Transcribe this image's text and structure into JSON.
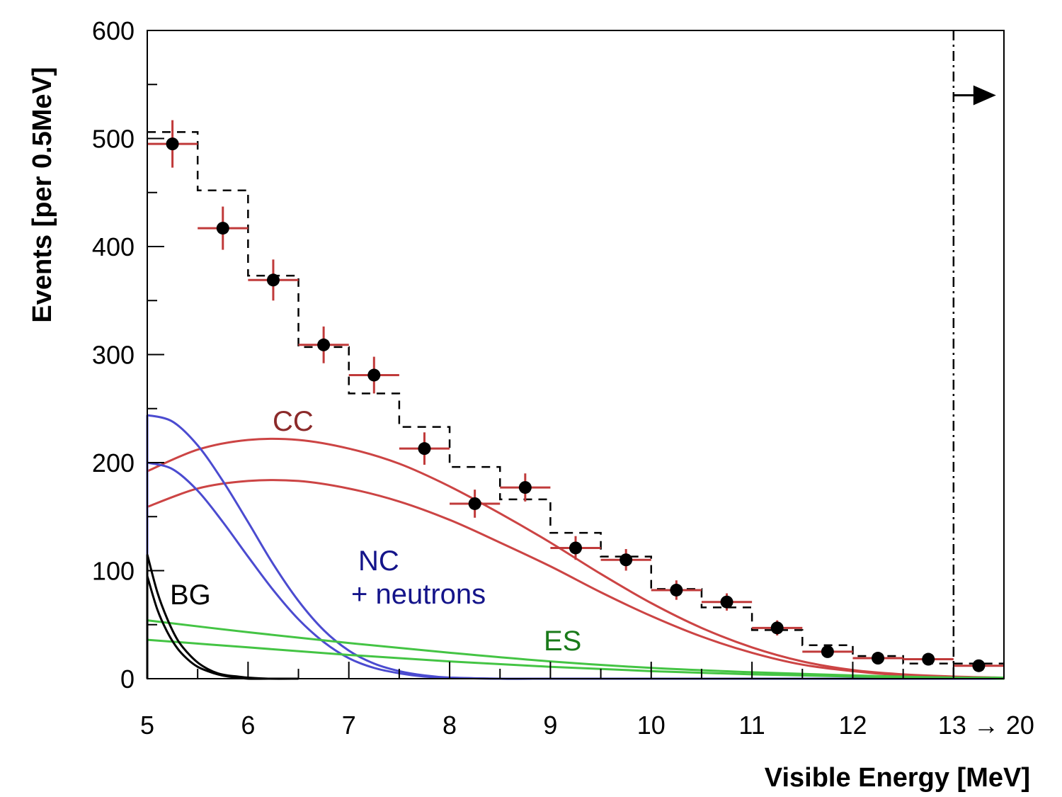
{
  "colors": {
    "frame": "#000000",
    "data": "#000000",
    "error_bar": "#c03a3a",
    "cc": "#cc4444",
    "cc_label": "#8b2a2a",
    "nc": "#4b4bd0",
    "nc_label": "#14148a",
    "es": "#44c444",
    "es_label": "#1a7a1a",
    "bg": "#000000",
    "expectation": "#000000"
  },
  "chart_data": {
    "type": "histogram",
    "xlabel": "Visible Energy [MeV]",
    "ylabel": "Events [per 0.5MeV]",
    "xlim": [
      5,
      13.5
    ],
    "ylim": [
      0,
      600
    ],
    "x_ticks": [
      "5",
      "6",
      "7",
      "8",
      "9",
      "10",
      "11",
      "12",
      "13 → 20"
    ],
    "x_tick_values": [
      5,
      6,
      7,
      8,
      9,
      10,
      11,
      12,
      13
    ],
    "y_ticks": [
      "0",
      "100",
      "200",
      "300",
      "400",
      "500",
      "600"
    ],
    "y_tick_values": [
      0,
      100,
      200,
      300,
      400,
      500,
      600
    ],
    "threshold": {
      "x": 13,
      "arrow_y": 540,
      "style": "dash-dot"
    },
    "data_points": {
      "name": "Data",
      "x": [
        5.25,
        5.75,
        6.25,
        6.75,
        7.25,
        7.75,
        8.25,
        8.75,
        9.25,
        9.75,
        10.25,
        10.75,
        11.25,
        11.75,
        12.25,
        12.75,
        13.25
      ],
      "y": [
        495,
        417,
        369,
        309,
        281,
        213,
        162,
        177,
        121,
        110,
        82,
        71,
        47,
        25,
        19,
        18,
        12
      ],
      "y_err": [
        22,
        20,
        19,
        17,
        17,
        15,
        13,
        13,
        11,
        10,
        9,
        8,
        7,
        5,
        4,
        4,
        3
      ],
      "x_halfwidth": 0.25
    },
    "expected_histogram": {
      "name": "Expectation",
      "bin_edges": [
        5,
        5.5,
        6,
        6.5,
        7,
        7.5,
        8,
        8.5,
        9,
        9.5,
        10,
        10.5,
        11,
        11.5,
        12,
        12.5,
        13,
        13.5
      ],
      "values": [
        506,
        452,
        373,
        307,
        264,
        233,
        196,
        166,
        135,
        113,
        83,
        66,
        45,
        31,
        21,
        14,
        14
      ],
      "style": "dashed"
    },
    "curves": [
      {
        "name": "CC",
        "label": "CC",
        "color_key": "cc",
        "x": [
          5,
          5.5,
          6,
          6.5,
          7,
          7.5,
          8,
          8.5,
          9,
          9.5,
          10,
          10.5,
          11,
          11.5,
          12,
          12.5,
          13,
          13.5
        ],
        "y": [
          192,
          212,
          221,
          221,
          213,
          199,
          178,
          153,
          126,
          97,
          70,
          47,
          29,
          16,
          8,
          4,
          2,
          1
        ]
      },
      {
        "name": "CC (lower)",
        "label": "",
        "color_key": "cc",
        "x": [
          5,
          5.5,
          6,
          6.5,
          7,
          7.5,
          8,
          8.5,
          9,
          9.5,
          10,
          10.5,
          11,
          11.5,
          12,
          12.5,
          13,
          13.5
        ],
        "y": [
          159,
          176,
          183,
          183,
          176,
          164,
          147,
          126,
          104,
          80,
          58,
          39,
          24,
          13,
          7,
          3,
          1,
          1
        ]
      },
      {
        "name": "NC + neutrons",
        "label": "NC",
        "color_key": "nc",
        "x": [
          5,
          5.25,
          5.5,
          5.75,
          6,
          6.25,
          6.5,
          6.75,
          7,
          7.25,
          7.5,
          7.75,
          8,
          8.5,
          9,
          9.5,
          10,
          12,
          13.5
        ],
        "y": [
          244,
          238,
          216,
          183,
          145,
          106,
          72,
          45,
          26,
          14,
          7,
          3,
          1,
          0,
          0,
          0,
          0,
          0,
          0
        ]
      },
      {
        "name": "NC + neutrons (lower)",
        "label": "",
        "color_key": "nc",
        "x": [
          5,
          5.25,
          5.5,
          5.75,
          6,
          6.25,
          6.5,
          6.75,
          7,
          7.25,
          7.5,
          7.75,
          8,
          8.5,
          9,
          9.5,
          10,
          12,
          13.5
        ],
        "y": [
          200,
          194,
          174,
          145,
          113,
          82,
          55,
          34,
          19,
          10,
          5,
          2,
          1,
          0,
          0,
          0,
          0,
          0,
          0
        ]
      },
      {
        "name": "ES",
        "label": "ES",
        "color_key": "es",
        "x": [
          5,
          6,
          7,
          8,
          9,
          10,
          11,
          12,
          13,
          13.5
        ],
        "y": [
          54,
          43,
          33,
          24,
          16,
          10,
          6,
          3,
          1,
          1
        ]
      },
      {
        "name": "ES (lower)",
        "label": "",
        "color_key": "es",
        "x": [
          5,
          6,
          7,
          8,
          9,
          10,
          11,
          12,
          13,
          13.5
        ],
        "y": [
          36,
          29,
          22,
          16,
          11,
          7,
          4,
          2,
          1,
          0
        ]
      },
      {
        "name": "BG",
        "label": "BG",
        "color_key": "bg",
        "x": [
          5,
          5.1,
          5.2,
          5.3,
          5.4,
          5.5,
          5.6,
          5.7,
          5.8,
          5.9,
          6,
          6.2,
          6.5
        ],
        "y": [
          115,
          80,
          55,
          36,
          24,
          15,
          9,
          5,
          3,
          2,
          1,
          0,
          0
        ]
      },
      {
        "name": "BG (lower)",
        "label": "",
        "color_key": "bg",
        "x": [
          5,
          5.1,
          5.2,
          5.3,
          5.4,
          5.5,
          5.6,
          5.7,
          5.8,
          5.9,
          6,
          6.2,
          6.5
        ],
        "y": [
          95,
          64,
          43,
          28,
          18,
          11,
          7,
          4,
          2,
          1,
          0,
          0,
          0
        ]
      }
    ],
    "annotations": {
      "cc": "CC",
      "nc_line1": "NC",
      "nc_line2": "+ neutrons",
      "es": "ES",
      "bg": "BG"
    }
  }
}
